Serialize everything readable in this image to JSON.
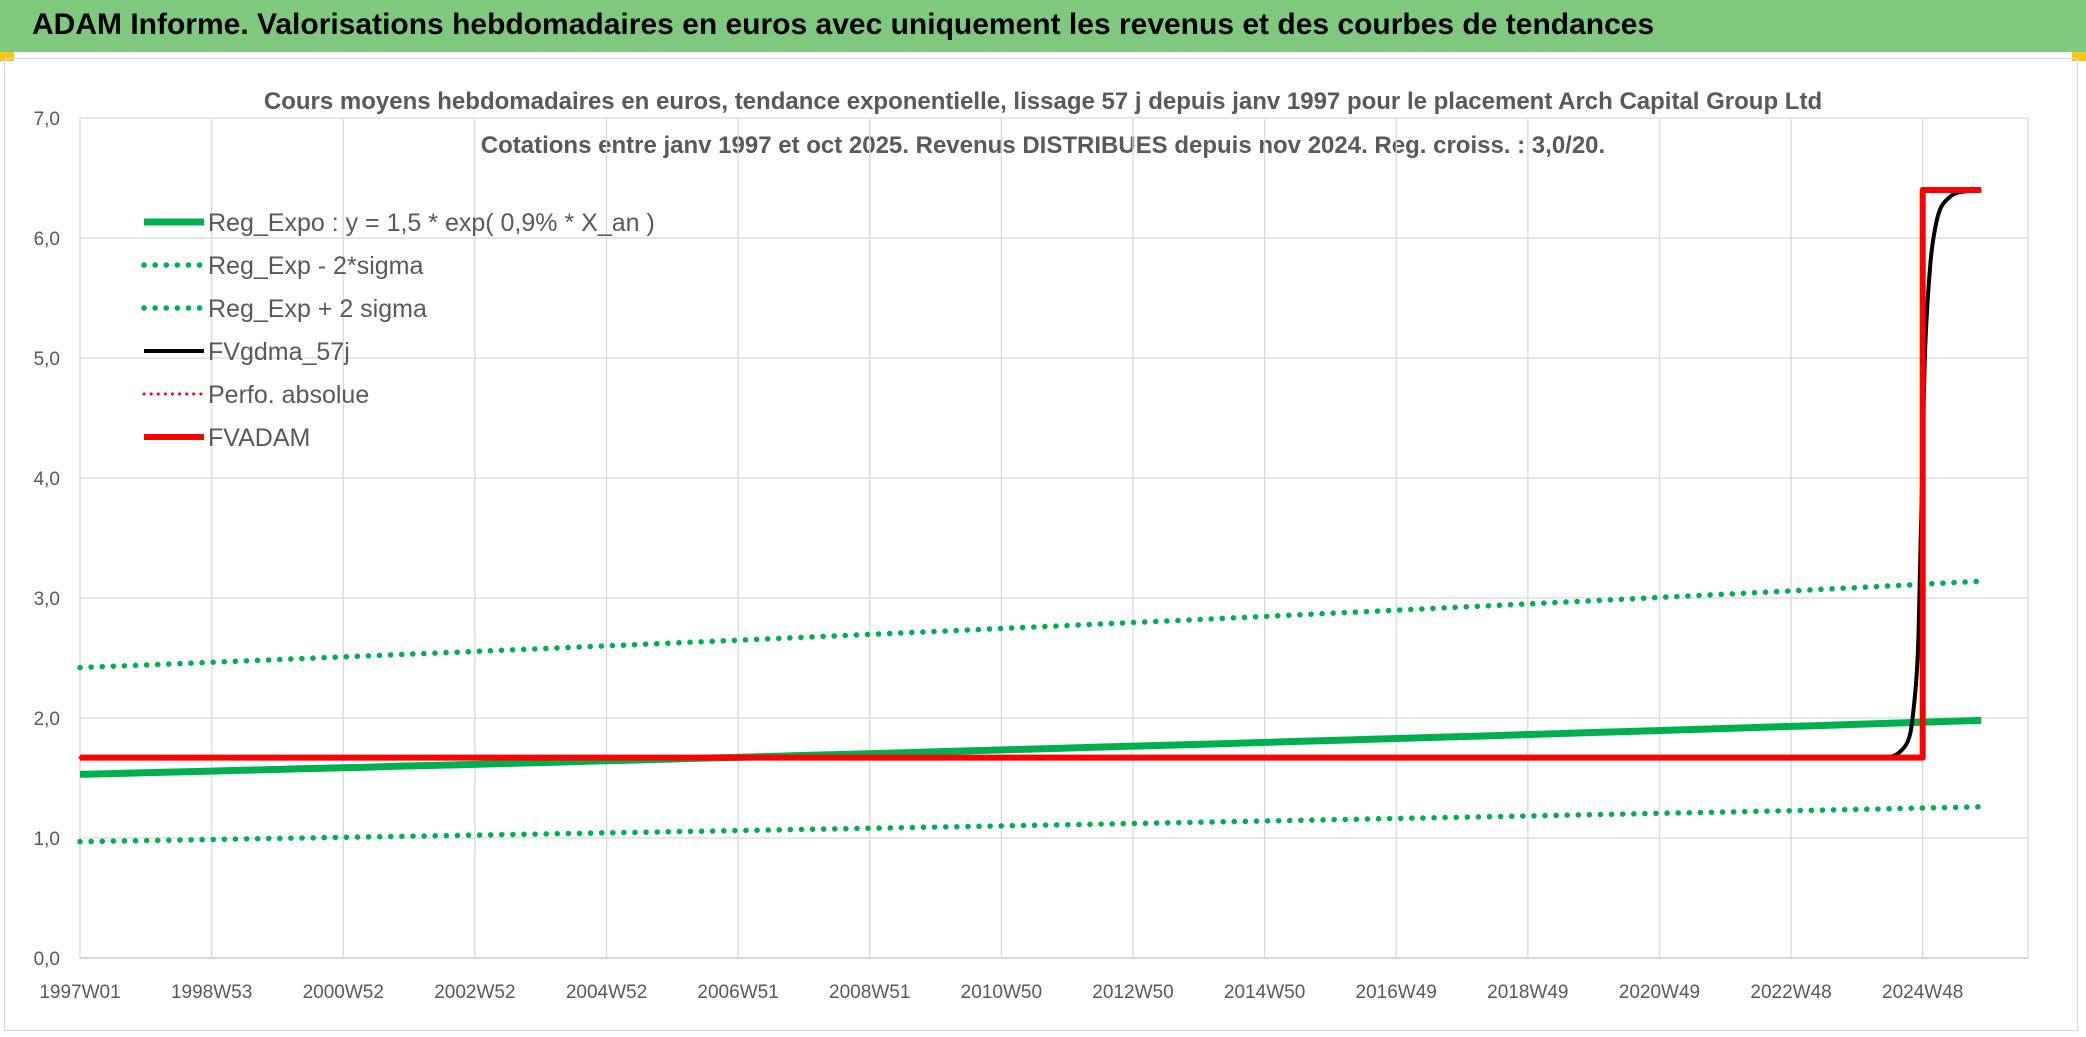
{
  "header": {
    "title": "ADAM Informe. Valorisations hebdomadaires en euros avec uniquement les revenus et des courbes de tendances"
  },
  "colors": {
    "banner": "#7fc97f",
    "reg_green": "#00b050",
    "fv_black": "#000000",
    "fvadam_red": "#ff0000",
    "grid": "#d9d9d9"
  },
  "chart_data": {
    "type": "line",
    "title": "Cours moyens hebdomadaires en euros, tendance exponentielle, lissage 57 j depuis janv 1997 pour le placement Arch Capital Group Ltd",
    "subtitle": "Cotations entre janv 1997 et oct 2025. Revenus DISTRIBUES depuis nov 2024. Reg. croiss. : 3,0/20.",
    "xlabel": "",
    "ylabel": "",
    "ylim": [
      0,
      7
    ],
    "yticks": [
      "0,0",
      "1,0",
      "2,0",
      "3,0",
      "4,0",
      "5,0",
      "6,0",
      "7,0"
    ],
    "xticks": [
      "1997W01",
      "1998W53",
      "2000W52",
      "2002W52",
      "2004W52",
      "2006W51",
      "2008W51",
      "2010W50",
      "2012W50",
      "2014W50",
      "2016W49",
      "2018W49",
      "2020W49",
      "2022W48",
      "2024W48"
    ],
    "grid": true,
    "legend_position": "top-left",
    "series": [
      {
        "name": "Reg_Expo : y = 1,5 * exp( 0,9% *  X_an )",
        "style": "solid",
        "color": "#00b050",
        "x": [
          "1997W01",
          "2025W42"
        ],
        "y": [
          1.53,
          1.98
        ]
      },
      {
        "name": "Reg_Exp - 2*sigma",
        "style": "dotted",
        "color": "#00b050",
        "x": [
          "1997W01",
          "2025W42"
        ],
        "y": [
          0.97,
          1.26
        ]
      },
      {
        "name": "Reg_Exp + 2 sigma",
        "style": "dotted",
        "color": "#00b050",
        "x": [
          "1997W01",
          "2025W42"
        ],
        "y": [
          2.42,
          3.14
        ]
      },
      {
        "name": "FVgdma_57j",
        "style": "solid",
        "color": "#000000",
        "x": [
          "1997W01",
          "2024W20",
          "2024W28",
          "2024W36",
          "2024W40",
          "2024W44",
          "2024W46",
          "2024W48",
          "2024W50",
          "2025W02",
          "2025W06",
          "2025W10",
          "2025W16",
          "2025W24",
          "2025W42"
        ],
        "y": [
          1.67,
          1.67,
          1.7,
          1.8,
          2.0,
          2.5,
          3.3,
          4.2,
          5.1,
          5.8,
          6.1,
          6.25,
          6.33,
          6.38,
          6.4
        ]
      },
      {
        "name": "Perfo. absolue",
        "style": "dotted",
        "color": "#ff0000",
        "x": [
          "1997W01",
          "2024W48",
          "2024W48",
          "2025W42"
        ],
        "y": [
          1.67,
          1.67,
          6.4,
          6.4
        ]
      },
      {
        "name": "FVADAM",
        "style": "solid",
        "color": "#ff0000",
        "x": [
          "1997W01",
          "2024W48",
          "2024W48",
          "2025W42"
        ],
        "y": [
          1.67,
          1.67,
          6.4,
          6.4
        ]
      }
    ]
  }
}
